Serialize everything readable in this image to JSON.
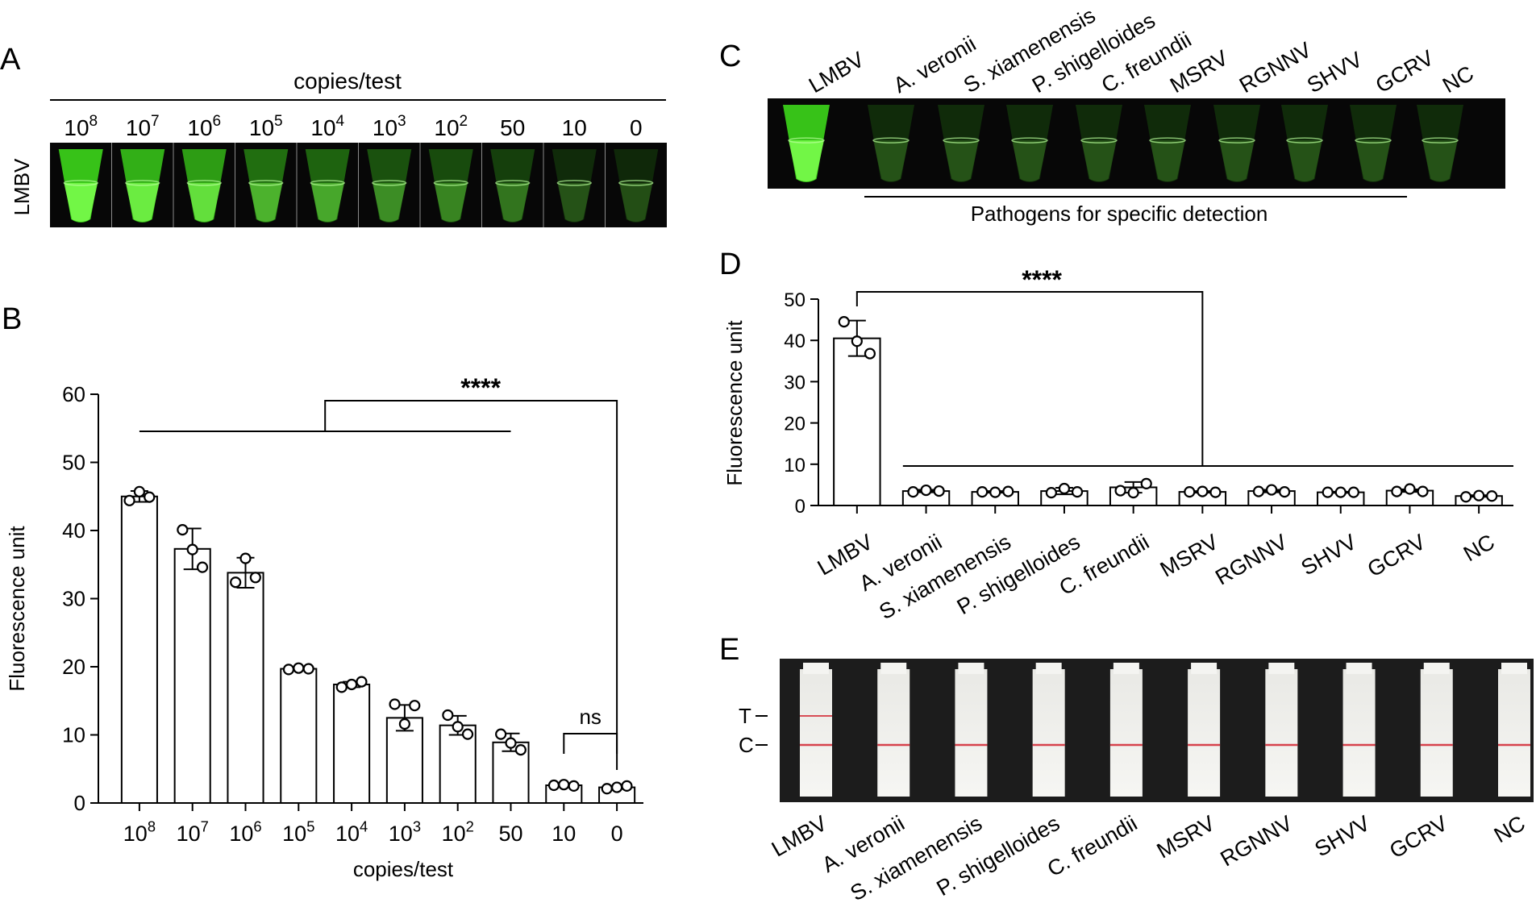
{
  "figure": {
    "panel_labels": {
      "A": "A",
      "B": "B",
      "C": "C",
      "D": "D",
      "E": "E"
    },
    "colors": {
      "glow": "#3bd11a",
      "tube_bg": "#070707",
      "strip_red": "#d2232f",
      "bar_fill": "#ffffff",
      "ink": "#000000"
    },
    "panel_a": {
      "header": "copies/test",
      "row_label": "LMBV",
      "tubes": [
        {
          "base": "10",
          "exp": "8",
          "intensity": 1.0
        },
        {
          "base": "10",
          "exp": "7",
          "intensity": 0.88
        },
        {
          "base": "10",
          "exp": "6",
          "intensity": 0.78
        },
        {
          "base": "10",
          "exp": "5",
          "intensity": 0.5
        },
        {
          "base": "10",
          "exp": "4",
          "intensity": 0.45
        },
        {
          "base": "10",
          "exp": "3",
          "intensity": 0.34
        },
        {
          "base": "10",
          "exp": "2",
          "intensity": 0.3
        },
        {
          "base": "50",
          "exp": "",
          "intensity": 0.24
        },
        {
          "base": "10",
          "exp": "",
          "intensity": 0.12
        },
        {
          "base": "0",
          "exp": "",
          "intensity": 0.1
        }
      ]
    },
    "panel_c": {
      "tubes": [
        {
          "label": "LMBV",
          "intensity": 1.0
        },
        {
          "label": "A. veronii",
          "intensity": 0.12
        },
        {
          "label": "S. xiamenensis",
          "intensity": 0.12
        },
        {
          "label": "P. shigelloides",
          "intensity": 0.12
        },
        {
          "label": "C. freundii",
          "intensity": 0.12
        },
        {
          "label": "MSRV",
          "intensity": 0.12
        },
        {
          "label": "RGNNV",
          "intensity": 0.12
        },
        {
          "label": "SHVV",
          "intensity": 0.12
        },
        {
          "label": "GCRV",
          "intensity": 0.12
        },
        {
          "label": "NC",
          "intensity": 0.12
        }
      ],
      "bracket_label": "Pathogens for specific detection"
    },
    "panel_e": {
      "strips": [
        {
          "label": "LMBV",
          "t_line": true,
          "c_line": true
        },
        {
          "label": "A. veronii",
          "t_line": false,
          "c_line": true
        },
        {
          "label": "S. xiamenensis",
          "t_line": false,
          "c_line": true
        },
        {
          "label": "P. shigelloides",
          "t_line": false,
          "c_line": true
        },
        {
          "label": "C. freundii",
          "t_line": false,
          "c_line": true
        },
        {
          "label": "MSRV",
          "t_line": false,
          "c_line": true
        },
        {
          "label": "RGNNV",
          "t_line": false,
          "c_line": true
        },
        {
          "label": "SHVV",
          "t_line": false,
          "c_line": true
        },
        {
          "label": "GCRV",
          "t_line": false,
          "c_line": true
        },
        {
          "label": "NC",
          "t_line": false,
          "c_line": true
        }
      ],
      "t_label": "T",
      "c_label": "C"
    }
  },
  "chart_data": [
    {
      "type": "bar",
      "panel": "B",
      "xlabel": "copies/test",
      "ylabel": "Fluorescence unit",
      "ylim": [
        0,
        60
      ],
      "yticks": [
        0,
        10,
        20,
        30,
        40,
        50,
        60
      ],
      "grid": false,
      "categories": [
        {
          "base": "10",
          "exp": "8"
        },
        {
          "base": "10",
          "exp": "7"
        },
        {
          "base": "10",
          "exp": "6"
        },
        {
          "base": "10",
          "exp": "5"
        },
        {
          "base": "10",
          "exp": "4"
        },
        {
          "base": "10",
          "exp": "3"
        },
        {
          "base": "10",
          "exp": "2"
        },
        {
          "base": "50",
          "exp": ""
        },
        {
          "base": "10",
          "exp": ""
        },
        {
          "base": "0",
          "exp": ""
        }
      ],
      "values": [
        45.0,
        37.3,
        33.8,
        19.7,
        17.4,
        12.5,
        11.4,
        8.9,
        2.6,
        2.3
      ],
      "errors": [
        0.8,
        3.0,
        2.2,
        0.2,
        0.4,
        1.9,
        1.4,
        1.3,
        0.15,
        0.2
      ],
      "points": [
        [
          44.4,
          45.7,
          44.9
        ],
        [
          40.1,
          37.2,
          34.6
        ],
        [
          32.4,
          35.9,
          33.1
        ],
        [
          19.6,
          19.8,
          19.7
        ],
        [
          17.0,
          17.4,
          17.8
        ],
        [
          14.5,
          11.6,
          14.3
        ],
        [
          12.9,
          11.2,
          10.1
        ],
        [
          10.1,
          8.8,
          7.8
        ],
        [
          2.6,
          2.7,
          2.5
        ],
        [
          2.1,
          2.3,
          2.5
        ]
      ],
      "significance": [
        {
          "label": "****",
          "group": [
            0,
            7
          ],
          "vs": 9
        },
        {
          "label": "ns",
          "between": [
            8,
            9
          ]
        }
      ]
    },
    {
      "type": "bar",
      "panel": "D",
      "xlabel": "",
      "ylabel": "Fluorescence unit",
      "ylim": [
        0,
        50
      ],
      "yticks": [
        0,
        10,
        20,
        30,
        40,
        50
      ],
      "grid": false,
      "categories": [
        "LMBV",
        "A. veronii",
        "S. xiamenensis",
        "P. shigelloides",
        "C. freundii",
        "MSRV",
        "RGNNV",
        "SHVV",
        "GCRV",
        "NC"
      ],
      "values": [
        40.5,
        3.5,
        3.3,
        3.5,
        4.4,
        3.3,
        3.5,
        3.2,
        3.6,
        2.3
      ],
      "errors": [
        4.3,
        0.3,
        0.2,
        0.8,
        1.3,
        0.2,
        0.3,
        0.15,
        0.3,
        0.2
      ],
      "points": [
        [
          44.5,
          39.8,
          36.8
        ],
        [
          3.3,
          3.7,
          3.5
        ],
        [
          3.3,
          3.2,
          3.4
        ],
        [
          3.1,
          4.1,
          3.3
        ],
        [
          3.6,
          3.1,
          5.3
        ],
        [
          3.3,
          3.4,
          3.2
        ],
        [
          3.4,
          3.8,
          3.3
        ],
        [
          3.2,
          3.2,
          3.2
        ],
        [
          3.4,
          4.0,
          3.4
        ],
        [
          2.1,
          2.4,
          2.3
        ]
      ],
      "significance": [
        {
          "label": "****",
          "ref": 0,
          "vs": [
            1,
            9
          ]
        }
      ]
    }
  ]
}
